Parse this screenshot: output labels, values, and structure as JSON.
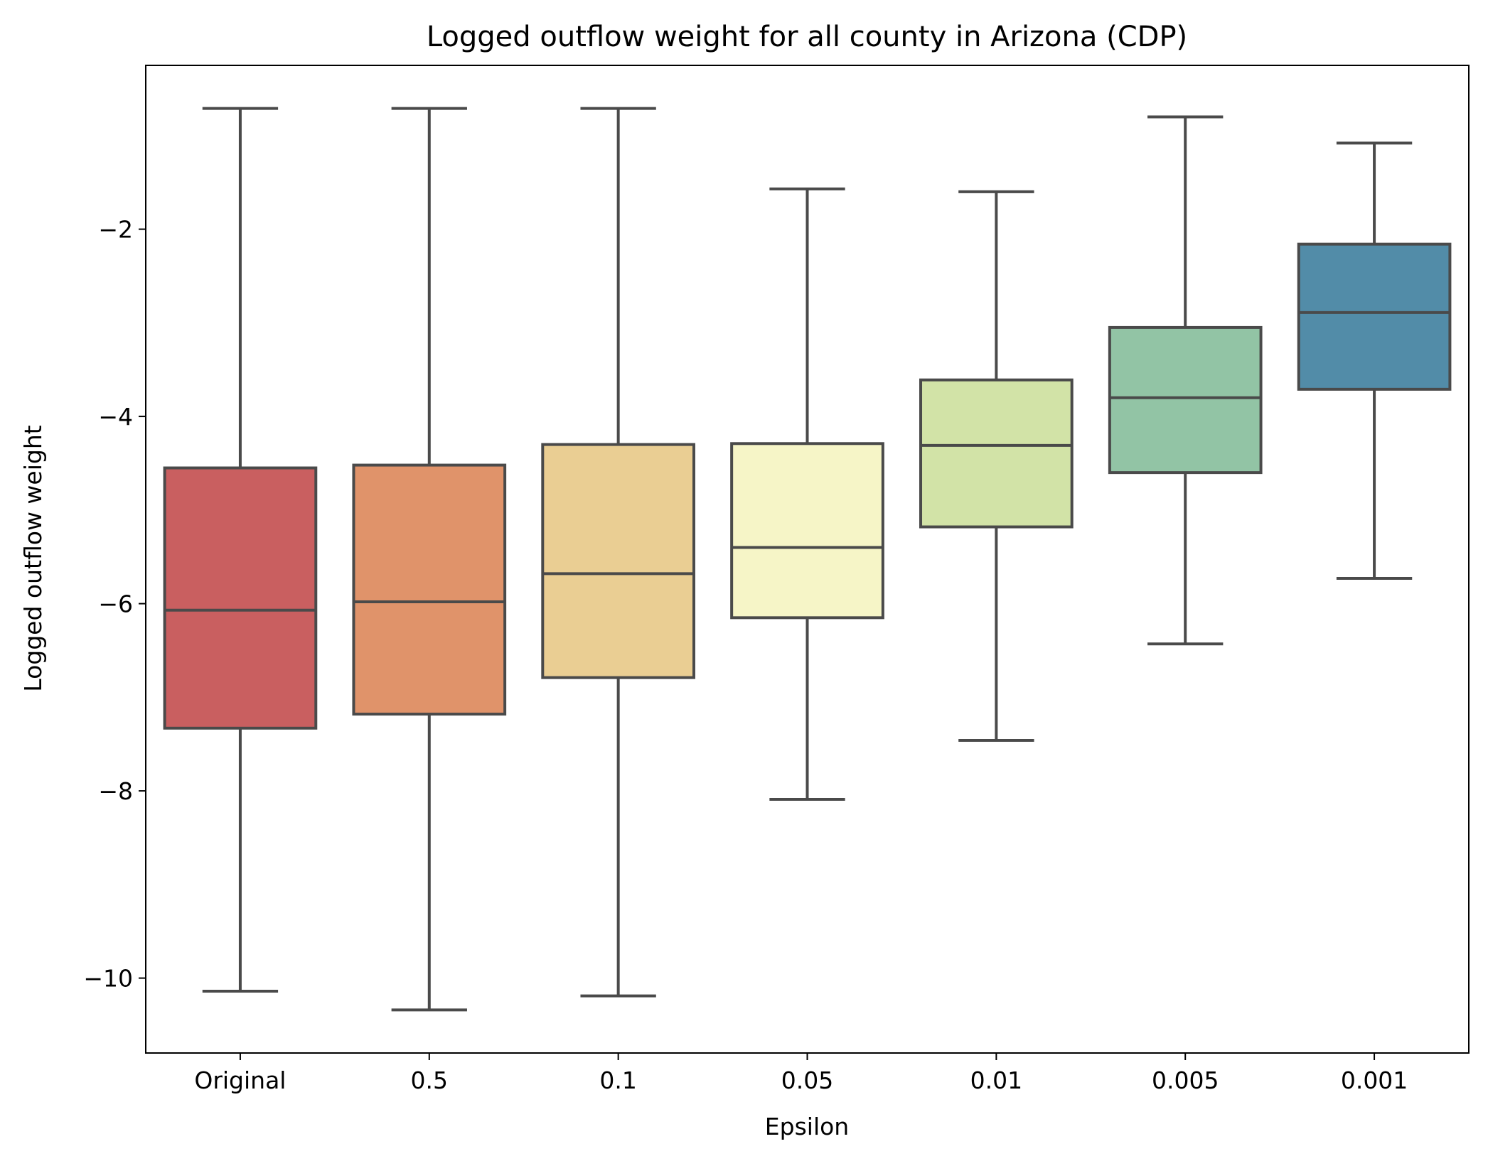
{
  "chart_data": {
    "type": "box",
    "title": "Logged outflow weight for all county in Arizona (CDP)",
    "xlabel": "Epsilon",
    "ylabel": "Logged outflow weight",
    "categories": [
      "Original",
      "0.5",
      "0.1",
      "0.05",
      "0.01",
      "0.005",
      "0.001"
    ],
    "ylim": [
      -10.8,
      -0.25
    ],
    "yticks": [
      -2,
      -4,
      -6,
      -8,
      -10
    ],
    "ytick_labels": [
      "−2",
      "−4",
      "−6",
      "−8",
      "−10"
    ],
    "grid": false,
    "legend": "none",
    "boxes": [
      {
        "category": "Original",
        "whisker_low": -10.14,
        "q1": -7.33,
        "median": -6.07,
        "q3": -4.55,
        "whisker_high": -0.71,
        "color": "#c95f60"
      },
      {
        "category": "0.5",
        "whisker_low": -10.34,
        "q1": -7.18,
        "median": -5.98,
        "q3": -4.52,
        "whisker_high": -0.71,
        "color": "#e0936a"
      },
      {
        "category": "0.1",
        "whisker_low": -10.19,
        "q1": -6.79,
        "median": -5.68,
        "q3": -4.3,
        "whisker_high": -0.71,
        "color": "#eace93"
      },
      {
        "category": "0.05",
        "whisker_low": -8.09,
        "q1": -6.15,
        "median": -5.4,
        "q3": -4.29,
        "whisker_high": -1.57,
        "color": "#f6f5c7"
      },
      {
        "category": "0.01",
        "whisker_low": -7.46,
        "q1": -5.18,
        "median": -4.31,
        "q3": -3.61,
        "whisker_high": -1.6,
        "color": "#d2e3a7"
      },
      {
        "category": "0.005",
        "whisker_low": -6.43,
        "q1": -4.6,
        "median": -3.8,
        "q3": -3.05,
        "whisker_high": -0.8,
        "color": "#92c4a5"
      },
      {
        "category": "0.001",
        "whisker_low": -5.73,
        "q1": -3.71,
        "median": -2.89,
        "q3": -2.16,
        "whisker_high": -1.08,
        "color": "#528ca8"
      }
    ],
    "line_color": "#4a4a4a"
  }
}
